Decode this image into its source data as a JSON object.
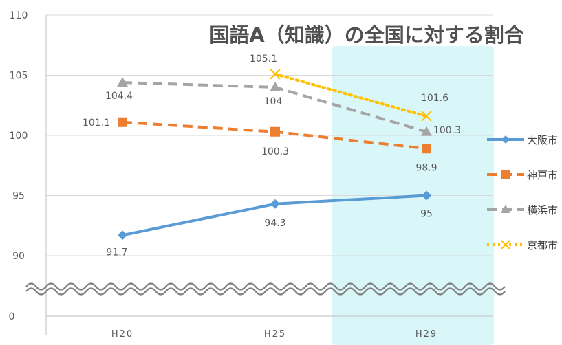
{
  "chart_data": {
    "type": "line",
    "title": "国語A（知識）の全国に対する割合",
    "categories": [
      "H20",
      "H25",
      "H29"
    ],
    "y_tick_labels": [
      "0",
      "90",
      "95",
      "100",
      "105",
      "110"
    ],
    "ylim_main": [
      90,
      110
    ],
    "axis_break": true,
    "highlighted_category": "H29",
    "highlight_color": "#d9f7f9",
    "grid": true,
    "legend_position": "right",
    "series": [
      {
        "name": "大阪市",
        "values": [
          91.7,
          94.3,
          95
        ],
        "labels": [
          "91.7",
          "94.3",
          "95"
        ],
        "color": "#5b9bd5",
        "style": "solid",
        "marker": "diamond"
      },
      {
        "name": "神戸市",
        "values": [
          101.1,
          100.3,
          98.9
        ],
        "labels": [
          "101.1",
          "100.3",
          "98.9"
        ],
        "color": "#ed7d31",
        "style": "dashed",
        "marker": "square"
      },
      {
        "name": "横浜市",
        "values": [
          104.4,
          104,
          100.3
        ],
        "labels": [
          "104.4",
          "104",
          "100.3"
        ],
        "color": "#a5a5a5",
        "style": "dashed",
        "marker": "triangle"
      },
      {
        "name": "京都市",
        "values": [
          null,
          105.1,
          101.6
        ],
        "labels": [
          "",
          "105.1",
          "101.6"
        ],
        "color": "#ffc000",
        "style": "dotted",
        "marker": "x"
      }
    ]
  }
}
